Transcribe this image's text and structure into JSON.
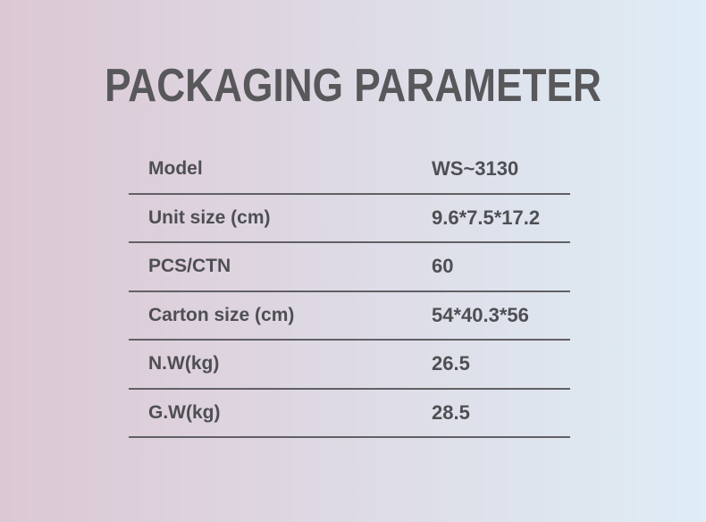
{
  "page": {
    "title": "PACKAGING PARAMETER"
  },
  "theme": {
    "background_left": "#dcc8d4",
    "background_right": "#dfedf6",
    "title_color": "#58585b",
    "text_color": "#4e4f52",
    "line_color": "#606065"
  },
  "table": {
    "rows": [
      {
        "label": "Model",
        "value": "WS~3130"
      },
      {
        "label": "Unit size (cm)",
        "value": "9.6*7.5*17.2"
      },
      {
        "label": "PCS/CTN",
        "value": "60"
      },
      {
        "label": "Carton size (cm)",
        "value": "54*40.3*56"
      },
      {
        "label": "N.W(kg)",
        "value": "26.5"
      },
      {
        "label": "G.W(kg)",
        "value": "28.5"
      }
    ]
  }
}
